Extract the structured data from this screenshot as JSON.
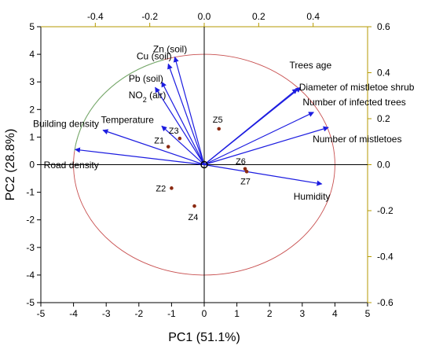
{
  "chart_data": {
    "type": "scatter",
    "subtype": "pca-biplot",
    "title": "",
    "xlabel": "PC1 (51.1%)",
    "ylabel": "PC2 (28.8%)",
    "xlim": [
      -5,
      5
    ],
    "ylim": [
      -5,
      5
    ],
    "xticks": [
      "-5",
      "-4",
      "-3",
      "-2",
      "-1",
      "0",
      "1",
      "2",
      "3",
      "4",
      "5"
    ],
    "yticks": [
      "-5",
      "-4",
      "-3",
      "-2",
      "-1",
      "0",
      "1",
      "2",
      "3",
      "4",
      "5"
    ],
    "top_axis": {
      "lim": [
        -0.6,
        0.6
      ],
      "ticks": [
        "-0.4",
        "-0.2",
        "0.0",
        "0.2",
        "0.4"
      ]
    },
    "right_axis": {
      "lim": [
        -0.6,
        0.6
      ],
      "ticks": [
        "0.6",
        "0.4",
        "0.2",
        "0.0",
        "-0.2",
        "-0.4",
        "-0.6"
      ]
    },
    "grid": false,
    "legend": "none",
    "colors": {
      "vector": "#1c1ce0",
      "point": "#8b2a12",
      "circle": "#c85050",
      "axis_top": "#b59a00",
      "frame": "#000000"
    },
    "circle_radius": 4.0,
    "points": [
      {
        "label": "Z1",
        "x": -1.1,
        "y": 0.65
      },
      {
        "label": "Z2",
        "x": -1.0,
        "y": -0.85
      },
      {
        "label": "Z3",
        "x": -0.75,
        "y": 0.95
      },
      {
        "label": "Z4",
        "x": -0.3,
        "y": -1.5
      },
      {
        "label": "Z5",
        "x": 0.45,
        "y": 1.3
      },
      {
        "label": "Z6",
        "x": 1.25,
        "y": -0.15
      },
      {
        "label": "Z7",
        "x": 1.3,
        "y": -0.25
      }
    ],
    "vectors": [
      {
        "label": "Zn (soil)",
        "x": -0.9,
        "y": 3.9
      },
      {
        "label": "Cu (soil)",
        "x": -1.1,
        "y": 3.65
      },
      {
        "label": "Pb (soil)",
        "x": -1.3,
        "y": 3.0
      },
      {
        "label": "NO",
        "sub": "2",
        "suffix": " (air)",
        "x": -1.5,
        "y": 2.8
      },
      {
        "label": "Temperature",
        "x": -1.3,
        "y": 1.4
      },
      {
        "label": "Building density",
        "x": -3.1,
        "y": 1.25
      },
      {
        "label": "Road density",
        "x": -3.95,
        "y": 0.55
      },
      {
        "label": "Trees age",
        "x": 2.85,
        "y": 2.75
      },
      {
        "label": "Diameter of mistletoe shrub",
        "x": 2.95,
        "y": 2.8
      },
      {
        "label": "Number of infected trees",
        "x": 3.35,
        "y": 1.9
      },
      {
        "label": "Number of mistletoes",
        "x": 3.8,
        "y": 1.35
      },
      {
        "label": "Humidity",
        "x": 3.6,
        "y": -0.7
      }
    ]
  }
}
